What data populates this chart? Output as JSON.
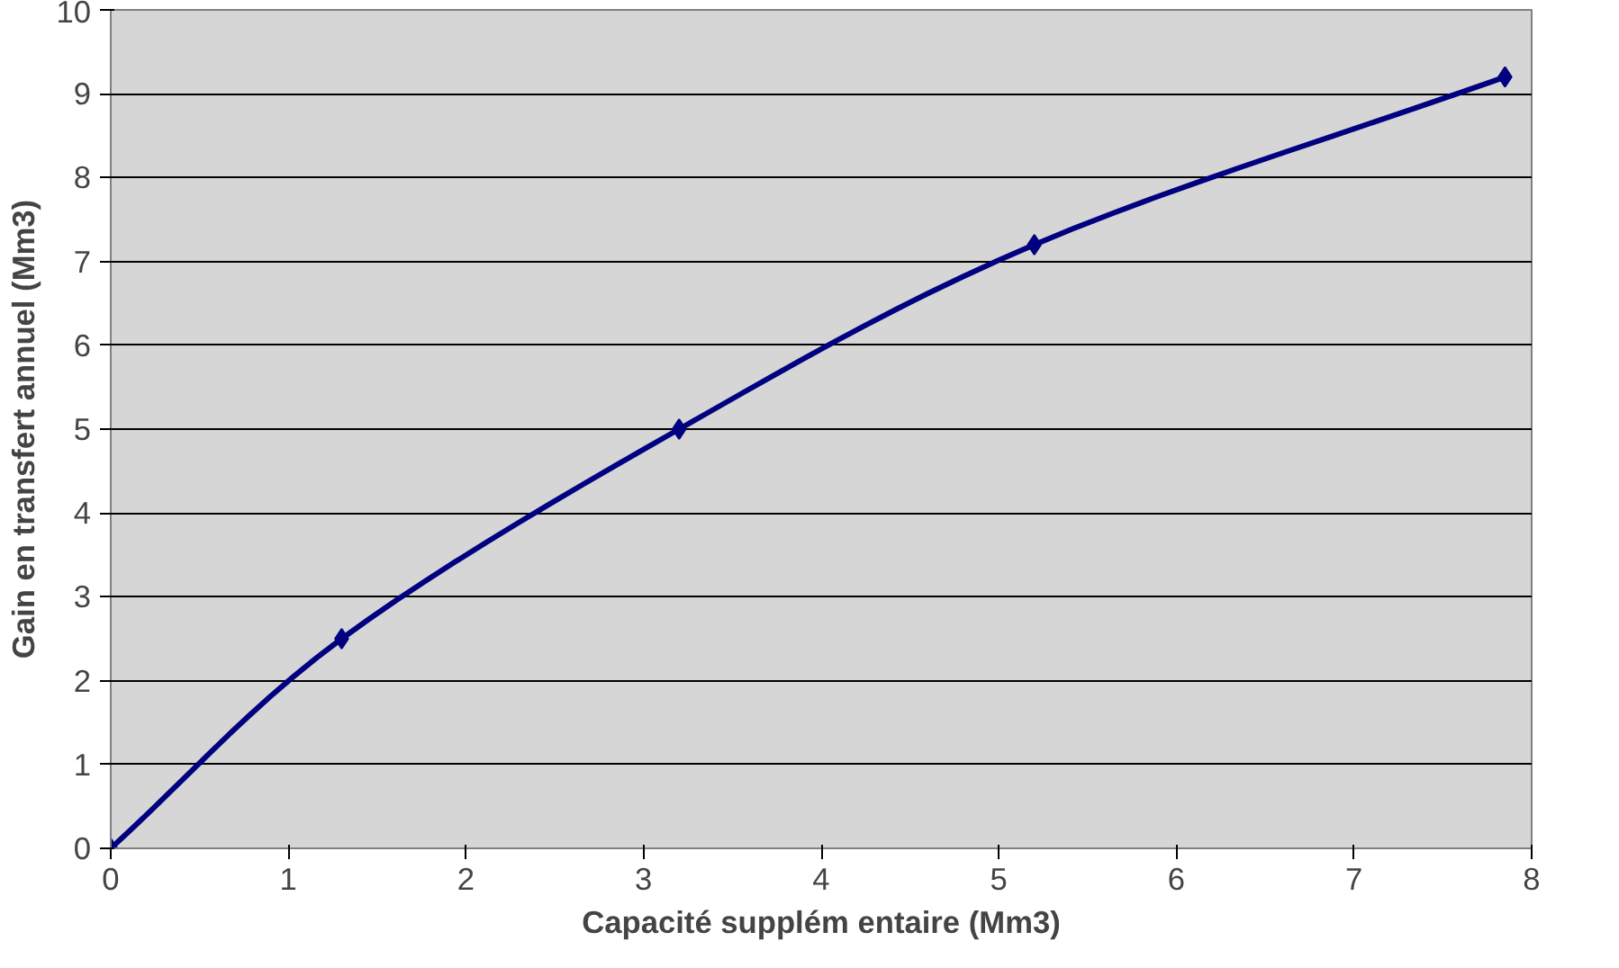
{
  "chart_data": {
    "type": "line",
    "xlabel": "Capacité supplém entaire (Mm3)",
    "ylabel": "Gain en transfert annuel (Mm3)",
    "x": [
      0,
      1.3,
      3.2,
      5.2,
      7.85
    ],
    "series": [
      {
        "color": "#000080",
        "values": [
          0,
          2.5,
          5.0,
          7.2,
          9.2
        ]
      }
    ],
    "xlim": [
      0,
      8
    ],
    "ylim": [
      0,
      10
    ],
    "xticks": [
      0,
      1,
      2,
      3,
      4,
      5,
      6,
      7,
      8
    ],
    "yticks": [
      0,
      1,
      2,
      3,
      4,
      5,
      6,
      7,
      8,
      9,
      10
    ],
    "grid": "y",
    "marker": "diamond",
    "line_style": "solid"
  }
}
